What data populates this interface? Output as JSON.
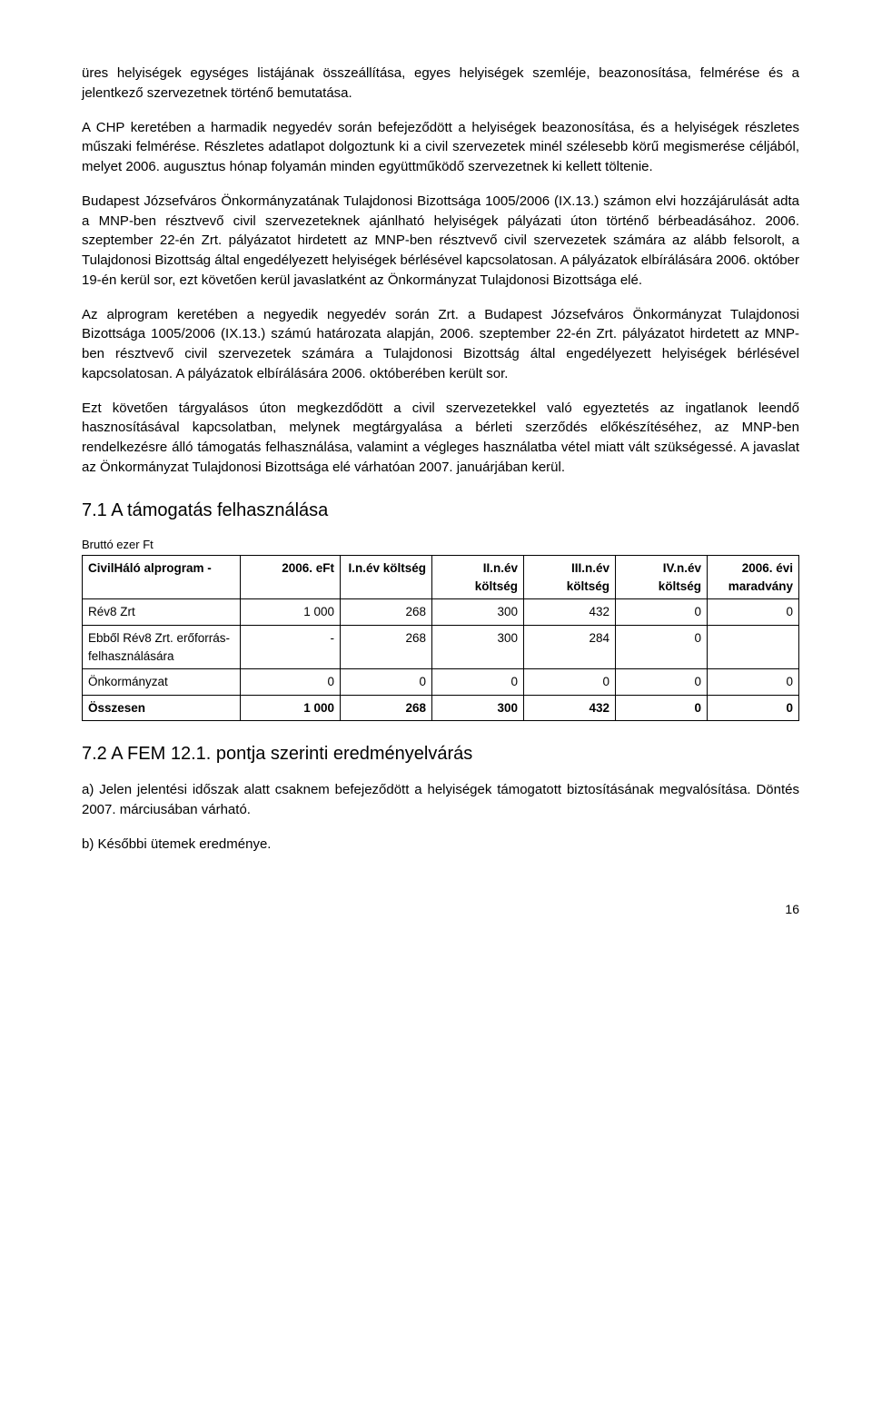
{
  "paragraphs": {
    "p1": "üres helyiségek egységes listájának összeállítása, egyes helyiségek szemléje, beazonosítása, felmérése és a jelentkező szervezetnek történő bemutatása.",
    "p2": "A CHP keretében a harmadik negyedév során befejeződött a helyiségek beazonosítása, és a helyiségek részletes műszaki felmérése. Részletes adatlapot dolgoztunk ki a civil szervezetek minél szélesebb körű megismerése céljából, melyet 2006. augusztus hónap folyamán minden együttműködő szervezetnek ki kellett töltenie.",
    "p3": "Budapest Józsefváros Önkormányzatának Tulajdonosi Bizottsága 1005/2006 (IX.13.) számon elvi hozzájárulását adta a MNP-ben résztvevő civil szervezeteknek ajánlható helyiségek pályázati úton történő bérbeadásához. 2006. szeptember 22-én Zrt. pályázatot hirdetett az MNP-ben résztvevő civil szervezetek számára az alább felsorolt, a Tulajdonosi Bizottság által engedélyezett helyiségek bérlésével kapcsolatosan. A pályázatok elbírálására 2006. október 19-én kerül sor, ezt követően kerül javaslatként az Önkormányzat Tulajdonosi Bizottsága elé.",
    "p4": "Az alprogram keretében a negyedik negyedév során Zrt. a Budapest Józsefváros Önkormányzat Tulajdonosi Bizottsága 1005/2006 (IX.13.) számú határozata alapján, 2006. szeptember 22-én Zrt. pályázatot hirdetett az MNP-ben résztvevő civil szervezetek számára a Tulajdonosi Bizottság által engedélyezett helyiségek bérlésével kapcsolatosan. A pályázatok elbírálására 2006. októberében került sor.",
    "p5": "Ezt követően tárgyalásos úton megkezdődött a civil szervezetekkel való egyeztetés az ingatlanok leendő hasznosításával kapcsolatban, melynek megtárgyalása a bérleti szerződés előkészítéséhez, az MNP-ben rendelkezésre álló támogatás felhasználása, valamint a végleges használatba vétel miatt vált szükségessé. A javaslat az Önkormányzat Tulajdonosi Bizottsága elé várhatóan 2007. januárjában kerül."
  },
  "headings": {
    "h71": "7.1  A támogatás felhasználása",
    "h72": "7.2  A FEM 12.1. pontja szerinti eredményelvárás"
  },
  "table": {
    "caption": "Bruttó ezer Ft",
    "head": {
      "c0": "CivilHáló alprogram -",
      "c1": "2006. eFt",
      "c2": "I.n.év költség",
      "c3": "II.n.év költség",
      "c4": "III.n.év költség",
      "c5": "IV.n.év költség",
      "c6": "2006. évi maradvány"
    },
    "rows": [
      {
        "c0": "Rév8 Zrt",
        "c1": "1 000",
        "c2": "268",
        "c3": "300",
        "c4": "432",
        "c5": "0",
        "c6": "0"
      },
      {
        "c0": "Ebből Rév8 Zrt. erőforrás-felhasználására",
        "c1": "-",
        "c2": "268",
        "c3": "300",
        "c4": "284",
        "c5": "0",
        "c6": ""
      },
      {
        "c0": "Önkormányzat",
        "c1": "0",
        "c2": "0",
        "c3": "0",
        "c4": "0",
        "c5": "0",
        "c6": "0"
      },
      {
        "c0": "Összesen",
        "c1": "1 000",
        "c2": "268",
        "c3": "300",
        "c4": "432",
        "c5": "0",
        "c6": "0"
      }
    ]
  },
  "result": {
    "a": "a) Jelen jelentési időszak alatt csaknem befejeződött a helyiségek támogatott biztosításának megvalósítása. Döntés 2007. márciusában várható.",
    "b": "b) Későbbi ütemek eredménye."
  },
  "pageNumber": "16"
}
